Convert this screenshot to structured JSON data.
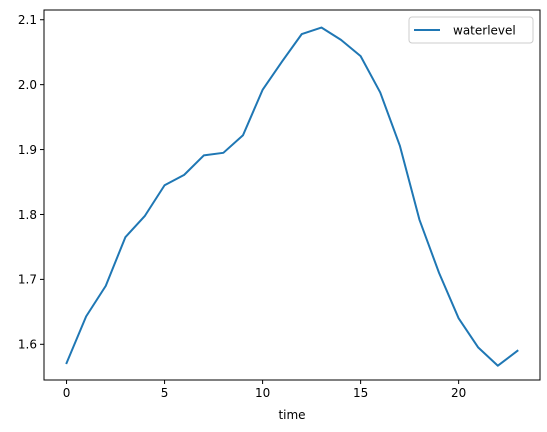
{
  "chart_data": {
    "type": "line",
    "xlabel": "time",
    "ylabel": "",
    "xlim": [
      -1.15,
      24.15
    ],
    "ylim": [
      1.545,
      2.115
    ],
    "x_ticks": [
      0,
      5,
      10,
      15,
      20
    ],
    "y_ticks": [
      1.6,
      1.7,
      1.8,
      1.9,
      2.0,
      2.1
    ],
    "x_tick_labels": [
      "0",
      "5",
      "10",
      "15",
      "20"
    ],
    "y_tick_labels": [
      "1.6",
      "1.7",
      "1.8",
      "1.9",
      "2.0",
      "2.1"
    ],
    "grid": false,
    "legend_position": "top-right",
    "series": [
      {
        "name": "waterlevel",
        "color": "#1f77b4",
        "x": [
          0,
          1,
          2,
          3,
          4,
          5,
          6,
          7,
          8,
          9,
          10,
          11,
          12,
          13,
          14,
          15,
          16,
          17,
          18,
          19,
          20,
          21,
          22,
          23
        ],
        "values": [
          1.571,
          1.643,
          1.69,
          1.765,
          1.798,
          1.845,
          1.861,
          1.891,
          1.895,
          1.922,
          1.992,
          2.036,
          2.078,
          2.088,
          2.069,
          2.044,
          1.988,
          1.906,
          1.792,
          1.71,
          1.64,
          1.595,
          1.567,
          1.59
        ]
      }
    ]
  }
}
